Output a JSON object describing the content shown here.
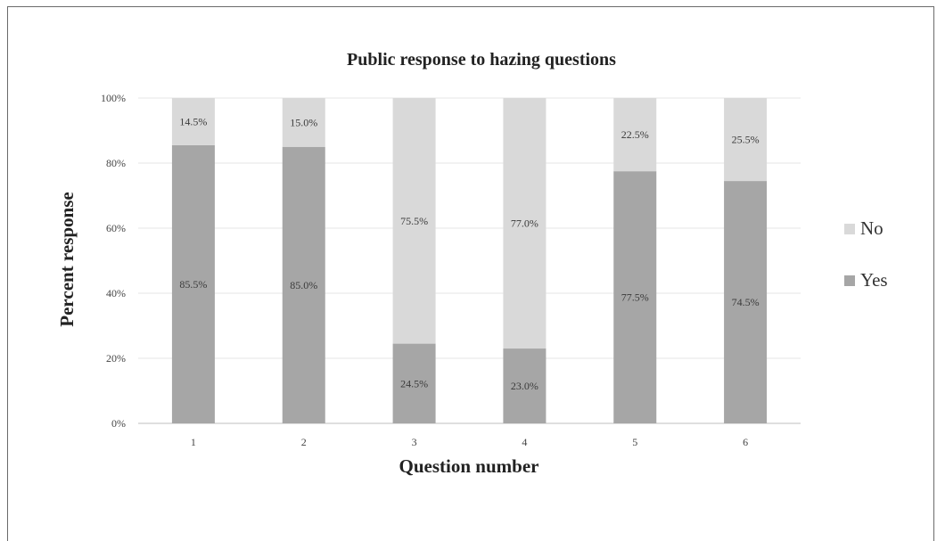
{
  "chart_data": {
    "type": "bar",
    "stacked": true,
    "title": "Public response to hazing questions",
    "xlabel": "Question number",
    "ylabel": "Percent response",
    "categories": [
      "1",
      "2",
      "3",
      "4",
      "5",
      "6"
    ],
    "series": [
      {
        "name": "Yes",
        "values": [
          85.5,
          85.0,
          24.5,
          23.0,
          77.5,
          74.5
        ],
        "labels": [
          "85.5%",
          "85.0%",
          "24.5%",
          "23.0%",
          "77.5%",
          "74.5%"
        ],
        "color": "#a6a6a6"
      },
      {
        "name": "No",
        "values": [
          14.5,
          15.0,
          75.5,
          77.0,
          22.5,
          25.5
        ],
        "labels": [
          "14.5%",
          "15.0%",
          "75.5%",
          "77.0%",
          "22.5%",
          "25.5%"
        ],
        "color": "#d9d9d9"
      }
    ],
    "yticks": [
      "0%",
      "20%",
      "40%",
      "60%",
      "80%",
      "100%"
    ],
    "ylim": [
      0,
      100
    ],
    "grid": true,
    "legend_position": "right"
  }
}
